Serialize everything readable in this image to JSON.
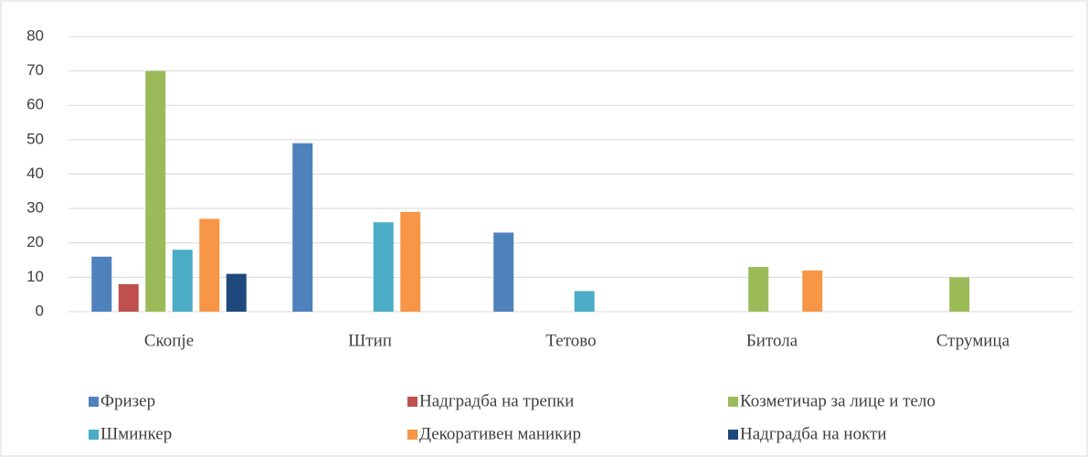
{
  "chart_data": {
    "type": "bar",
    "categories": [
      "Скопје",
      "Штип",
      "Тетово",
      "Битола",
      "Струмица"
    ],
    "series": [
      {
        "name": "Фризер",
        "color": "#4f81bd",
        "values": [
          16,
          49,
          23,
          null,
          null
        ]
      },
      {
        "name": "Надградба на трепки",
        "color": "#c0504d",
        "values": [
          8,
          null,
          null,
          null,
          null
        ]
      },
      {
        "name": "Козметичар за лице и тело",
        "color": "#9bbb59",
        "values": [
          70,
          null,
          null,
          13,
          10
        ]
      },
      {
        "name": "Шминкер",
        "color": "#4bacc6",
        "values": [
          18,
          26,
          6,
          null,
          null
        ]
      },
      {
        "name": "Декоративен маникир",
        "color": "#f79646",
        "values": [
          27,
          29,
          null,
          12,
          null
        ]
      },
      {
        "name": "Надградба на нокти",
        "color": "#1f497d",
        "values": [
          11,
          null,
          null,
          null,
          null
        ]
      }
    ],
    "ylim": [
      0,
      80
    ],
    "yticks": [
      0,
      10,
      20,
      30,
      40,
      50,
      60,
      70,
      80
    ],
    "grid": true,
    "legend": "bottom"
  }
}
